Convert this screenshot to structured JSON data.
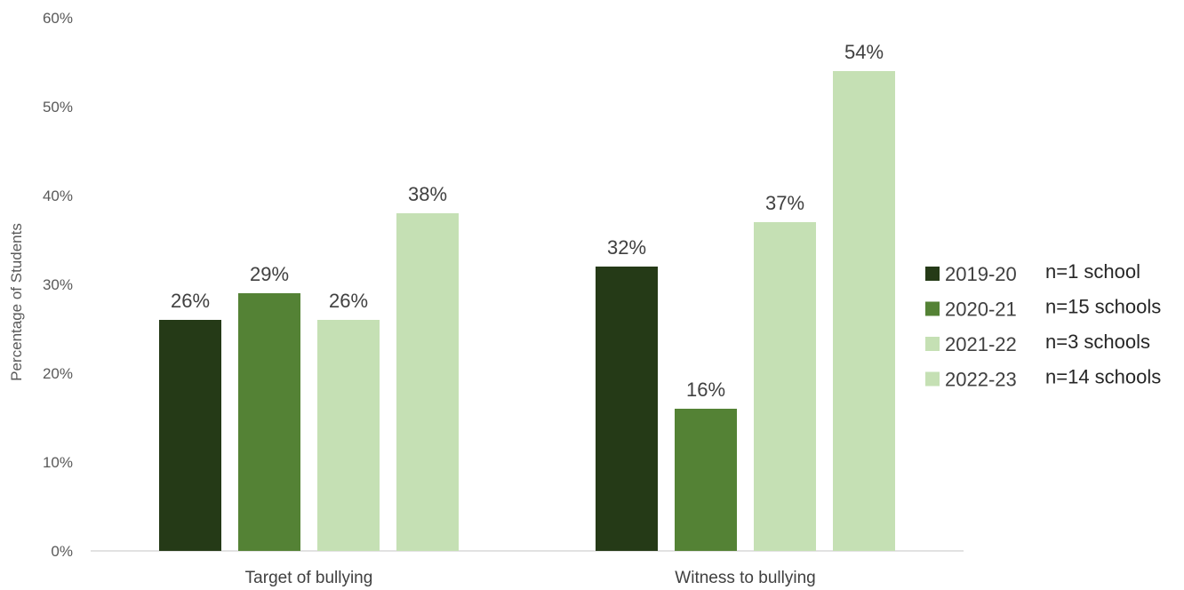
{
  "chart_data": {
    "type": "bar",
    "title": "",
    "xlabel": "",
    "ylabel": "Percentage of Students",
    "ylim": [
      0,
      60
    ],
    "yticks": [
      "0%",
      "10%",
      "20%",
      "30%",
      "40%",
      "50%",
      "60%"
    ],
    "categories": [
      "Target of bullying",
      "Witness to bullying"
    ],
    "series": [
      {
        "name": "2019-20",
        "note": "n=1 school",
        "color": "#253a17",
        "values": [
          26,
          32
        ],
        "labels": [
          "26%",
          "32%"
        ]
      },
      {
        "name": "2020-21",
        "note": "n=15 schools",
        "color": "#548235",
        "values": [
          29,
          16
        ],
        "labels": [
          "29%",
          "16%"
        ]
      },
      {
        "name": "2021-22",
        "note": "n=3 schools",
        "color": "#c5e0b4",
        "values": [
          26,
          37
        ],
        "labels": [
          "26%",
          "37%"
        ]
      },
      {
        "name": "2022-23",
        "note": "n=14 schools",
        "color": "#c5e0b4",
        "values": [
          38,
          54
        ],
        "labels": [
          "38%",
          "54%"
        ]
      }
    ],
    "grid": false,
    "legend": "right"
  }
}
